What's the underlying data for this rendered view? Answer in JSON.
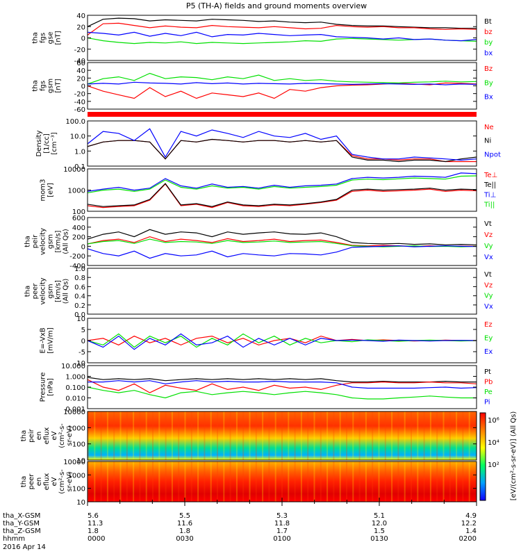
{
  "title": "P5 (TH-A) fields and ground moments overview",
  "date_label": "2016 Apr 14",
  "colors": {
    "black": "#000000",
    "red": "#ff0000",
    "green": "#00e000",
    "blue": "#0000ff"
  },
  "chart_data": [
    {
      "type": "line",
      "ylabel_lines": [
        "tha",
        "fgs",
        "gse",
        "[nT]"
      ],
      "yticks": [
        "40",
        "20",
        "0",
        "-20",
        "-40"
      ],
      "ylim": [
        -40,
        40
      ],
      "series": [
        {
          "name": "Bt",
          "color": "black",
          "values": [
            20,
            33,
            35,
            34,
            30,
            32,
            31,
            30,
            33,
            32,
            31,
            29,
            30,
            28,
            27,
            28,
            24,
            22,
            21,
            21,
            20,
            19,
            18,
            18,
            17,
            17
          ]
        },
        {
          "name": "bz",
          "color": "red",
          "values": [
            5,
            25,
            26,
            22,
            18,
            21,
            19,
            18,
            22,
            20,
            19,
            18,
            20,
            18,
            16,
            17,
            22,
            20,
            19,
            20,
            18,
            18,
            16,
            15,
            16,
            15
          ]
        },
        {
          "name": "by",
          "color": "green",
          "values": [
            0,
            -5,
            -8,
            -10,
            -8,
            -9,
            -7,
            -10,
            -8,
            -9,
            -10,
            -9,
            -8,
            -7,
            -5,
            -6,
            -2,
            -1,
            -2,
            -3,
            -4,
            -3,
            -2,
            -4,
            -5,
            -6
          ]
        },
        {
          "name": "bx",
          "color": "blue",
          "values": [
            10,
            8,
            5,
            10,
            3,
            8,
            4,
            10,
            2,
            6,
            5,
            8,
            6,
            4,
            5,
            6,
            2,
            1,
            0,
            -2,
            0,
            -3,
            -2,
            -4,
            -5,
            -3
          ]
        }
      ]
    },
    {
      "type": "line",
      "ylabel_lines": [
        "tha",
        "fgs",
        "gsm",
        "[nT]"
      ],
      "yticks": [
        "60",
        "40",
        "20",
        "0",
        "-20",
        "-40",
        "-60"
      ],
      "ylim": [
        -70,
        60
      ],
      "series": [
        {
          "name": "Bz",
          "color": "red",
          "values": [
            -5,
            -20,
            -30,
            -40,
            -10,
            -35,
            -20,
            -40,
            -25,
            -30,
            -35,
            -25,
            -40,
            -15,
            -20,
            -10,
            -5,
            -3,
            -2,
            0,
            2,
            0,
            -2,
            3,
            2,
            0
          ]
        },
        {
          "name": "By",
          "color": "green",
          "values": [
            0,
            15,
            20,
            10,
            30,
            15,
            20,
            18,
            12,
            20,
            15,
            25,
            10,
            15,
            10,
            12,
            8,
            6,
            5,
            4,
            3,
            5,
            6,
            8,
            6,
            7
          ]
        },
        {
          "name": "Bx",
          "color": "blue",
          "values": [
            0,
            2,
            0,
            5,
            3,
            2,
            0,
            4,
            1,
            3,
            0,
            2,
            1,
            0,
            2,
            1,
            0,
            -1,
            0,
            1,
            0,
            -1,
            0,
            -2,
            0,
            -1
          ]
        }
      ]
    },
    {
      "type": "line",
      "log": true,
      "ylabel_lines": [
        "Density",
        "[1/cc]",
        "[cm^-3]"
      ],
      "yticks": [
        "100.0",
        "10.0",
        "1.0",
        "0.1"
      ],
      "ylim": [
        0.1,
        100
      ],
      "series": [
        {
          "name": "Ne",
          "color": "red",
          "values": [
            2,
            4,
            5,
            5,
            4,
            0.3,
            5,
            4,
            6,
            5,
            4,
            5,
            5,
            4,
            5,
            4,
            5,
            0.5,
            0.3,
            0.3,
            0.25,
            0.3,
            0.3,
            0.2,
            0.2,
            0.2
          ]
        },
        {
          "name": "Ni",
          "color": "black",
          "values": [
            2,
            4,
            5,
            5,
            4,
            0.3,
            5,
            4,
            6,
            5,
            4,
            5,
            5,
            4,
            5,
            4,
            5,
            0.4,
            0.25,
            0.25,
            0.2,
            0.25,
            0.25,
            0.2,
            0.3,
            0.4
          ]
        },
        {
          "name": "Npot",
          "color": "blue",
          "values": [
            3,
            20,
            15,
            5,
            30,
            0.4,
            20,
            10,
            25,
            15,
            8,
            20,
            10,
            8,
            15,
            6,
            10,
            0.6,
            0.4,
            0.3,
            0.3,
            0.4,
            0.35,
            0.3,
            0.25,
            0.3
          ]
        }
      ]
    },
    {
      "type": "line",
      "log": true,
      "ylabel_lines": [
        "mom3",
        "[eV]"
      ],
      "yticks": [
        "10000",
        "1000",
        "100"
      ],
      "ylim": [
        50,
        10000
      ],
      "series": [
        {
          "name": "Te⊥",
          "color": "red",
          "values": [
            100,
            80,
            90,
            100,
            200,
            1500,
            100,
            120,
            80,
            150,
            100,
            90,
            110,
            100,
            120,
            150,
            200,
            600,
            700,
            600,
            650,
            700,
            800,
            600,
            700,
            650
          ]
        },
        {
          "name": "Te||",
          "color": "black",
          "values": [
            120,
            90,
            100,
            110,
            220,
            1600,
            110,
            130,
            90,
            160,
            110,
            100,
            120,
            110,
            130,
            160,
            220,
            700,
            800,
            700,
            750,
            800,
            900,
            700,
            800,
            750
          ]
        },
        {
          "name": "Ti⊥",
          "color": "blue",
          "values": [
            600,
            800,
            1000,
            700,
            900,
            3000,
            1200,
            900,
            1500,
            1000,
            1100,
            900,
            1300,
            1000,
            1200,
            1300,
            1500,
            3000,
            3500,
            3200,
            3500,
            4000,
            3800,
            3500,
            6000,
            5500
          ]
        },
        {
          "name": "Ti||",
          "color": "green",
          "values": [
            500,
            700,
            800,
            600,
            800,
            2500,
            1000,
            800,
            1200,
            900,
            1000,
            800,
            1100,
            900,
            1000,
            1100,
            1300,
            2500,
            2800,
            2600,
            2900,
            3200,
            3000,
            2800,
            4000,
            4200
          ]
        }
      ]
    },
    {
      "type": "line",
      "ylabel_lines": [
        "tha",
        "peir",
        "velocity",
        "gsm",
        "[km/s]",
        "(All Qs)"
      ],
      "yticks": [
        "600",
        "400",
        "200",
        "0",
        "-200",
        "-400"
      ],
      "ylim": [
        -400,
        600
      ],
      "series": [
        {
          "name": "Vt",
          "color": "black",
          "values": [
            150,
            250,
            300,
            200,
            350,
            250,
            300,
            280,
            200,
            300,
            250,
            280,
            300,
            260,
            250,
            280,
            200,
            80,
            60,
            50,
            60,
            40,
            50,
            30,
            40,
            30
          ]
        },
        {
          "name": "Vz",
          "color": "red",
          "values": [
            50,
            120,
            150,
            80,
            200,
            100,
            150,
            120,
            80,
            160,
            100,
            120,
            150,
            100,
            120,
            130,
            80,
            20,
            10,
            20,
            10,
            0,
            10,
            0,
            5,
            0
          ]
        },
        {
          "name": "Vy",
          "color": "green",
          "values": [
            50,
            100,
            120,
            60,
            150,
            80,
            100,
            90,
            60,
            120,
            80,
            90,
            110,
            80,
            90,
            100,
            60,
            10,
            0,
            -10,
            0,
            10,
            -5,
            0,
            -10,
            0
          ]
        },
        {
          "name": "Vx",
          "color": "blue",
          "values": [
            -50,
            -150,
            -200,
            -100,
            -250,
            -150,
            -200,
            -180,
            -100,
            -220,
            -150,
            -180,
            -200,
            -150,
            -160,
            -180,
            -120,
            -20,
            -10,
            0,
            10,
            -10,
            0,
            10,
            0,
            -5
          ]
        }
      ]
    },
    {
      "type": "line",
      "ylabel_lines": [
        "tha",
        "peer",
        "velocity",
        "gsm",
        "[km/s]",
        "(All Qs)"
      ],
      "yticks": [
        "1.0",
        "0.8",
        "0.6",
        "0.4",
        "0.2",
        "0.0"
      ],
      "ylim": [
        0,
        1
      ],
      "series": [
        {
          "name": "Vt",
          "color": "black",
          "values": []
        },
        {
          "name": "Vz",
          "color": "red",
          "values": []
        },
        {
          "name": "Vy",
          "color": "green",
          "values": []
        },
        {
          "name": "Vx",
          "color": "blue",
          "values": []
        }
      ]
    },
    {
      "type": "line",
      "ylabel_lines": [
        "E=-VxB",
        "[mV/m]"
      ],
      "yticks": [
        "10",
        "5",
        "0",
        "-5",
        "-10"
      ],
      "ylim": [
        -10,
        10
      ],
      "series": [
        {
          "name": "Ez",
          "color": "red",
          "values": [
            0,
            1,
            -2,
            2,
            -1,
            1,
            -2,
            1,
            2,
            -1,
            1,
            -2,
            0,
            1,
            -1,
            2,
            0,
            0.5,
            0,
            0.3,
            0,
            -0.2,
            0,
            0.2,
            0,
            0
          ]
        },
        {
          "name": "Ey",
          "color": "green",
          "values": [
            0,
            -2,
            3,
            -3,
            2,
            -1,
            2,
            -3,
            1,
            -2,
            3,
            -1,
            2,
            -2,
            1,
            -1,
            0,
            -0.5,
            0.3,
            0,
            -0.3,
            0,
            0.2,
            0,
            -0.2,
            0
          ]
        },
        {
          "name": "Ex",
          "color": "blue",
          "values": [
            0,
            -3,
            2,
            -4,
            1,
            -2,
            3,
            -2,
            -1,
            2,
            -3,
            1,
            -2,
            1,
            -2,
            1,
            0,
            0.2,
            0,
            -0.3,
            0.2,
            0,
            -0.2,
            0,
            0.1,
            0
          ]
        }
      ]
    },
    {
      "type": "line",
      "log": true,
      "ylabel_lines": [
        "Pressure",
        "[nPa]"
      ],
      "yticks": [
        "10.000",
        "1.000",
        "0.100",
        "0.010",
        "0.001"
      ],
      "ylim": [
        0.001,
        10
      ],
      "series": [
        {
          "name": "Pt",
          "color": "black",
          "values": [
            0.8,
            0.5,
            0.6,
            0.5,
            0.6,
            0.4,
            0.5,
            0.6,
            0.5,
            0.6,
            0.5,
            0.6,
            0.5,
            0.6,
            0.5,
            0.6,
            0.4,
            0.3,
            0.3,
            0.35,
            0.3,
            0.3,
            0.3,
            0.35,
            0.3,
            0.3
          ]
        },
        {
          "name": "Pb",
          "color": "red",
          "values": [
            0.5,
            0.1,
            0.05,
            0.2,
            0.03,
            0.15,
            0.08,
            0.05,
            0.2,
            0.06,
            0.1,
            0.05,
            0.15,
            0.08,
            0.1,
            0.06,
            0.15,
            0.25,
            0.25,
            0.3,
            0.25,
            0.25,
            0.3,
            0.25,
            0.25,
            0.2
          ]
        },
        {
          "name": "Pe",
          "color": "green",
          "values": [
            0.1,
            0.05,
            0.03,
            0.05,
            0.02,
            0.01,
            0.03,
            0.04,
            0.02,
            0.03,
            0.04,
            0.03,
            0.02,
            0.03,
            0.04,
            0.03,
            0.02,
            0.01,
            0.008,
            0.008,
            0.01,
            0.012,
            0.015,
            0.012,
            0.01,
            0.01
          ]
        },
        {
          "name": "Pi",
          "color": "blue",
          "values": [
            0.3,
            0.3,
            0.4,
            0.3,
            0.4,
            0.2,
            0.3,
            0.4,
            0.3,
            0.35,
            0.3,
            0.3,
            0.35,
            0.3,
            0.3,
            0.3,
            0.25,
            0.1,
            0.08,
            0.08,
            0.08,
            0.08,
            0.09,
            0.1,
            0.08,
            0.09
          ]
        }
      ]
    },
    {
      "type": "heatmap",
      "ylabel_lines": [
        "tha",
        "peir",
        "en",
        "eflux",
        "eV",
        "(cm^2-s-",
        "sr-eV)"
      ],
      "yticks": [
        "10000",
        "1000",
        "100",
        "10"
      ],
      "ylim": [
        5,
        25000
      ]
    },
    {
      "type": "heatmap",
      "ylabel_lines": [
        "tha",
        "peer",
        "en",
        "eflux",
        "eV",
        "(cm^2-s-",
        "sr-eV)"
      ],
      "yticks": [
        "10000",
        "1000",
        "100",
        "10"
      ],
      "ylim": [
        5,
        25000
      ]
    }
  ],
  "colorbar": {
    "ticks": [
      "10^6",
      "10^4",
      "10^2"
    ],
    "label": "[eV/(cm^2-s-sr-eV)] (All Qs)"
  },
  "x_axis": {
    "row_labels": [
      "tha_X-GSM",
      "tha_Y-GSM",
      "tha_Z-GSM",
      "hhmm"
    ],
    "columns": [
      {
        "values": [
          "5.6",
          "11.3",
          "1.8",
          "0000"
        ]
      },
      {
        "values": [
          "5.5",
          "11.6",
          "1.8",
          "0030"
        ]
      },
      {
        "values": [
          "5.3",
          "11.8",
          "1.7",
          "0100"
        ]
      },
      {
        "values": [
          "5.1",
          "12.0",
          "1.5",
          "0130"
        ]
      },
      {
        "values": [
          "4.9",
          "12.2",
          "1.4",
          "0200"
        ]
      }
    ]
  }
}
